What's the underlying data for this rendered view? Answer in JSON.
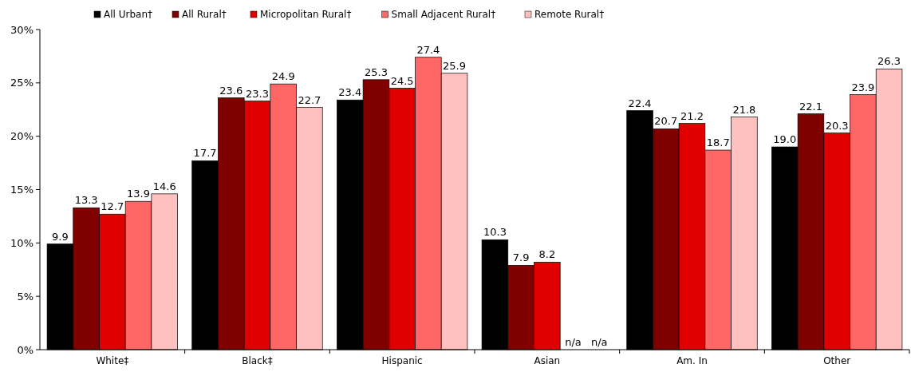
{
  "chart_data": {
    "type": "bar",
    "categories": [
      "White‡",
      "Black‡",
      "Hispanic",
      "Asian",
      "Am. In",
      "Other"
    ],
    "series": [
      {
        "name": "All Urban†",
        "color": "#000000",
        "values": [
          9.9,
          17.7,
          23.4,
          10.3,
          22.4,
          19.0
        ],
        "value_labels": [
          "9.9",
          "17.7",
          "23.4",
          "10.3",
          "22.4",
          "19.0"
        ]
      },
      {
        "name": "All Rural†",
        "color": "#800000",
        "values": [
          13.3,
          23.6,
          25.3,
          7.9,
          20.7,
          22.1
        ],
        "value_labels": [
          "13.3",
          "23.6",
          "25.3",
          "7.9",
          "20.7",
          "22.1"
        ]
      },
      {
        "name": "Micropolitan Rural†",
        "color": "#e00000",
        "values": [
          12.7,
          23.3,
          24.5,
          8.2,
          21.2,
          20.3
        ],
        "value_labels": [
          "12.7",
          "23.3",
          "24.5",
          "8.2",
          "21.2",
          "20.3"
        ]
      },
      {
        "name": "Small Adjacent Rural†",
        "color": "#ff6666",
        "values": [
          13.9,
          24.9,
          27.4,
          null,
          18.7,
          23.9
        ],
        "value_labels": [
          "13.9",
          "24.9",
          "27.4",
          "n/a",
          "18.7",
          "23.9"
        ]
      },
      {
        "name": "Remote Rural†",
        "color": "#ffc0c0",
        "values": [
          14.6,
          22.7,
          25.9,
          null,
          21.8,
          26.3
        ],
        "value_labels": [
          "14.6",
          "22.7",
          "25.9",
          "n/a",
          "21.8",
          "26.3"
        ]
      }
    ],
    "ylim": [
      0,
      30
    ],
    "yticks": [
      {
        "value": 0,
        "label": "0%"
      },
      {
        "value": 5,
        "label": "5%"
      },
      {
        "value": 10,
        "label": "10%"
      },
      {
        "value": 15,
        "label": "15%"
      },
      {
        "value": 20,
        "label": "20%"
      },
      {
        "value": 25,
        "label": "25%"
      },
      {
        "value": 30,
        "label": "30%"
      }
    ],
    "grid": false,
    "legend": "top left"
  }
}
